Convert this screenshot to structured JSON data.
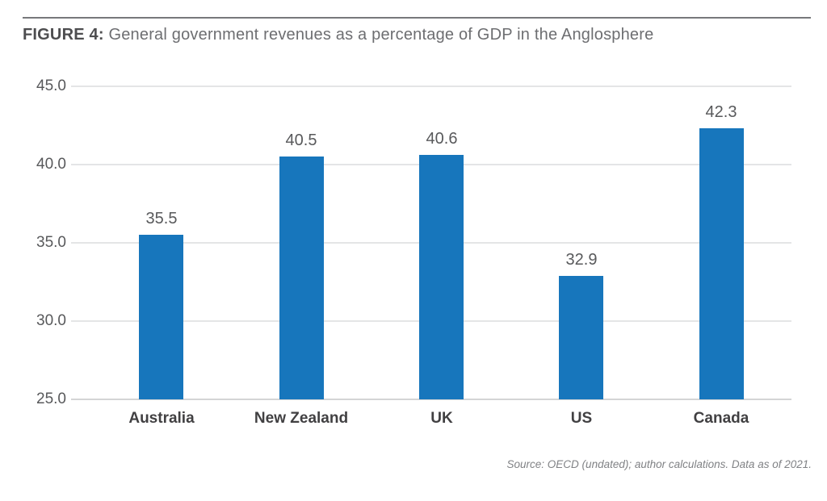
{
  "figure": {
    "title_prefix": "FIGURE 4:",
    "title_rest": "General government revenues as a percentage of GDP in the Anglosphere",
    "source": "Source: OECD (undated); author calculations. Data as of 2021."
  },
  "colors": {
    "bar": "#1776BC",
    "grid": "#E4E5E6",
    "baseline": "#D4D5D6",
    "ytick_label": "#58595B",
    "value_label": "#58595B",
    "category_label": "#414042",
    "title_bold": "#4D4D4F",
    "title_regular": "#6D6E71",
    "source_text": "#808285",
    "top_rule": "#77787B"
  },
  "chart_data": {
    "type": "bar",
    "title": "FIGURE 4: General government revenues as a percentage of GDP in the Anglosphere",
    "categories": [
      "Australia",
      "New Zealand",
      "UK",
      "US",
      "Canada"
    ],
    "values": [
      35.5,
      40.5,
      40.6,
      32.9,
      42.3
    ],
    "value_labels": [
      "35.5",
      "40.5",
      "40.6",
      "32.9",
      "42.3"
    ],
    "xlabel": "",
    "ylabel": "",
    "ylim": [
      25.0,
      45.0
    ],
    "yticks": [
      45.0,
      40.0,
      35.0,
      30.0,
      25.0
    ],
    "ytick_labels": [
      "45.0",
      "40.0",
      "35.0",
      "30.0",
      "25.0"
    ],
    "grid": true,
    "legend": false,
    "bar_color": "#1776BC",
    "source": "Source: OECD (undated); author calculations. Data as of 2021."
  }
}
